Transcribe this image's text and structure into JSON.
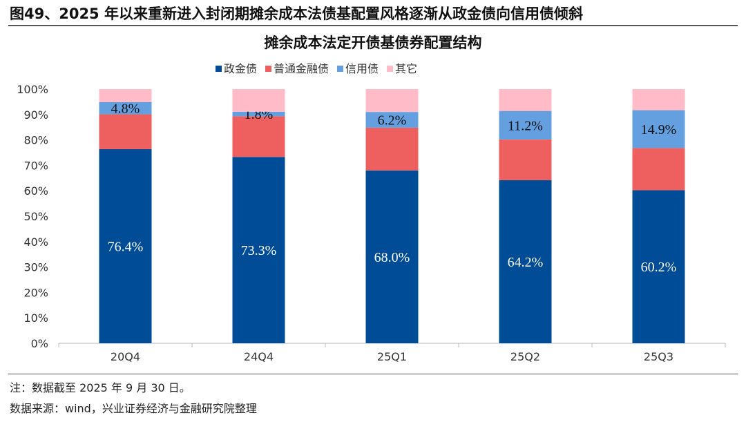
{
  "figure_title": "图49、2025 年以来重新进入封闭期摊余成本法债基配置风格逐渐从政金债向信用债倾斜",
  "footnote": "注：数据截至 2025 年 9 月 30 日。",
  "source": "数据来源：wind，兴业证券经济与金融研究院整理",
  "chart_data": {
    "type": "bar",
    "stacked": true,
    "title": "摊余成本法定开债基债券配置结构",
    "categories": [
      "20Q4",
      "24Q4",
      "25Q1",
      "25Q2",
      "25Q3"
    ],
    "series": [
      {
        "name": "政金债",
        "color": "#004C97",
        "values": [
          76.4,
          73.3,
          68.0,
          64.2,
          60.2
        ],
        "labels": [
          "76.4%",
          "73.3%",
          "68.0%",
          "64.2%",
          "60.2%"
        ]
      },
      {
        "name": "普通金融债",
        "color": "#EE5F5F",
        "values": [
          13.7,
          16.0,
          16.8,
          16.0,
          16.6
        ],
        "labels": []
      },
      {
        "name": "信用债",
        "color": "#64A0E0",
        "values": [
          4.8,
          1.8,
          6.2,
          11.2,
          14.9
        ],
        "labels": [
          "4.8%",
          "1.8%",
          "6.2%",
          "11.2%",
          "14.9%"
        ]
      },
      {
        "name": "其它",
        "color": "#FFBCC8",
        "values": [
          5.1,
          8.9,
          9.0,
          8.6,
          8.3
        ],
        "labels": []
      }
    ],
    "ylim": [
      0,
      100
    ],
    "yticks": [
      "0%",
      "10%",
      "20%",
      "30%",
      "40%",
      "50%",
      "60%",
      "70%",
      "80%",
      "90%",
      "100%"
    ],
    "legend": "top",
    "grid": false
  }
}
